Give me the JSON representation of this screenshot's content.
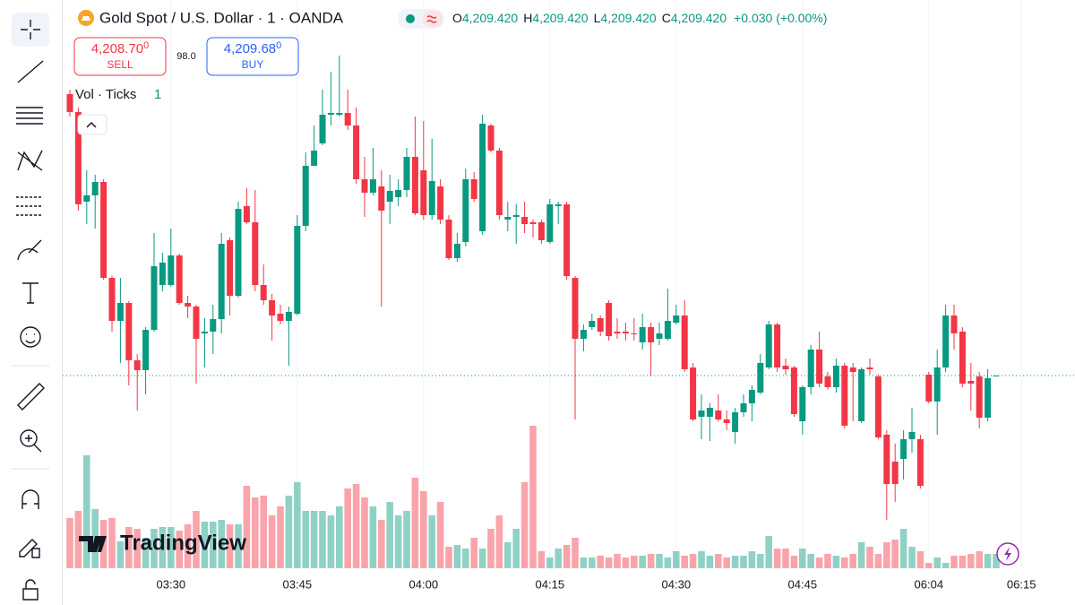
{
  "header": {
    "title": "Gold Spot / U.S. Dollar · 1 · OANDA",
    "ohlc": [
      {
        "key": "O",
        "value": "4,209.420"
      },
      {
        "key": "H",
        "value": "4,209.420"
      },
      {
        "key": "L",
        "value": "4,209.420"
      },
      {
        "key": "C",
        "value": "4,209.420"
      }
    ],
    "change": "+0.030 (+0.00%)"
  },
  "trade": {
    "sell": {
      "price": "4,208.70",
      "pip": "0",
      "label": "SELL"
    },
    "spread": "98.0",
    "buy": {
      "price": "4,209.68",
      "pip": "0",
      "label": "BUY"
    }
  },
  "indicator": {
    "label": "Vol · Ticks",
    "value": "1"
  },
  "watermark": "TradingView",
  "chart_data": {
    "type": "candlestick",
    "up_color": "#089981",
    "down_color": "#f23645",
    "ylim": [
      4206,
      4217
    ],
    "grid": true,
    "categories": [
      null,
      null,
      null,
      null,
      null,
      null,
      null,
      null,
      null,
      null,
      null,
      null,
      "03:30",
      null,
      null,
      null,
      null,
      null,
      null,
      null,
      null,
      null,
      null,
      null,
      null,
      null,
      null,
      "03:45",
      null,
      null,
      null,
      null,
      null,
      null,
      null,
      null,
      null,
      null,
      null,
      null,
      null,
      null,
      "04:00",
      null,
      null,
      null,
      null,
      null,
      null,
      null,
      null,
      null,
      null,
      null,
      null,
      null,
      null,
      "04:15",
      null,
      null,
      null,
      null,
      null,
      null,
      null,
      null,
      null,
      null,
      null,
      null,
      null,
      null,
      "04:30",
      null,
      null,
      null,
      null,
      null,
      null,
      null,
      null,
      null,
      null,
      null,
      null,
      null,
      null,
      "04:45",
      null,
      null,
      null,
      null,
      null,
      null,
      null,
      null,
      null,
      null,
      null,
      null,
      null,
      null,
      "06:04",
      null,
      null,
      null,
      null,
      null,
      null,
      null,
      null,
      null,
      null,
      "06:15"
    ],
    "open": [
      4215.7,
      4215.3,
      4213.3,
      4213.44,
      4213.74,
      4211.6,
      4210.64,
      4211.04,
      4209.76,
      4209.54,
      4210.44,
      4211.44,
      4211.44,
      4212.1,
      4211.04,
      4210.96,
      4210.36,
      4210.4,
      4210.68,
      4212.44,
      4211.2,
      4213.2,
      4212.84,
      4211.44,
      4211.1,
      4210.8,
      4210.64,
      4210.8,
      4212.76,
      4214.1,
      4214.6,
      4215.24,
      4215.24,
      4215.28,
      4215.0,
      4213.8,
      4213.5,
      4213.64,
      4213.3,
      4213.4,
      4213.56,
      4214.3,
      4214.0,
      4213.0,
      4213.64,
      4212.9,
      4212.04,
      4212.4,
      4213.8,
      4212.64,
      4215.0,
      4214.44,
      4212.9,
      4212.96,
      4212.96,
      4212.84,
      4212.84,
      4212.4,
      4213.2,
      4213.24,
      4211.6,
      4210.24,
      4210.5,
      4210.7,
      4211.04,
      4210.4,
      4210.4,
      4210.36,
      4210.16,
      4210.5,
      4210.24,
      4210.24,
      4210.6,
      4210.76,
      4209.6,
      4208.5,
      4208.5,
      4208.64,
      4208.44,
      4208.16,
      4208.6,
      4208.8,
      4209.04,
      4209.6,
      4210.56,
      4209.64,
      4209.6,
      4208.4,
      4209.16,
      4210.0,
      4209.4,
      4209.16,
      4209.64,
      4209.6,
      4208.4,
      4209.6,
      4209.4,
      4208.1,
      4207.5,
      4207.56,
      4208.0,
      4208.0,
      4209.44,
      4208.84,
      4209.6,
      4210.76,
      4210.4,
      4209.3,
      4209.4,
      4208.48,
      4209.42,
      null,
      null,
      null
    ],
    "high": [
      4215.8,
      4215.4,
      4214.0,
      4213.9,
      4213.8,
      4211.64,
      4211.6,
      4211.08,
      4209.9,
      4210.5,
      4212.6,
      4212.16,
      4212.7,
      4212.14,
      4211.2,
      4211.0,
      4210.7,
      4211.0,
      4212.6,
      4212.5,
      4213.3,
      4213.6,
      4213.56,
      4211.9,
      4211.24,
      4211.0,
      4210.96,
      4213.0,
      4214.4,
      4215.0,
      4215.8,
      4216.2,
      4216.56,
      4215.8,
      4215.4,
      4214.3,
      4214.5,
      4214.0,
      4213.9,
      4213.8,
      4214.5,
      4215.2,
      4215.1,
      4214.7,
      4213.8,
      4213.0,
      4212.6,
      4214.04,
      4213.96,
      4215.24,
      4215.04,
      4214.5,
      4213.3,
      4213.24,
      4213.3,
      4212.9,
      4212.9,
      4213.36,
      4213.3,
      4213.3,
      4211.64,
      4210.56,
      4210.8,
      4210.76,
      4211.1,
      4210.7,
      4210.6,
      4210.7,
      4210.8,
      4210.6,
      4210.6,
      4211.36,
      4211.0,
      4211.1,
      4209.7,
      4209.0,
      4208.8,
      4209.0,
      4208.64,
      4208.7,
      4209.0,
      4209.2,
      4209.9,
      4210.64,
      4210.6,
      4209.8,
      4209.64,
      4209.2,
      4210.1,
      4210.4,
      4209.5,
      4209.8,
      4209.7,
      4209.7,
      4209.6,
      4209.8,
      4209.44,
      4208.2,
      4207.9,
      4208.2,
      4208.7,
      4208.1,
      4209.5,
      4210.0,
      4211.0,
      4211.0,
      4210.5,
      4209.7,
      4209.5,
      4209.56,
      4209.42,
      null,
      null,
      null
    ],
    "low": [
      4215.2,
      4213.1,
      4212.8,
      4212.7,
      4211.56,
      4210.4,
      4209.7,
      4209.2,
      4208.64,
      4209.0,
      4210.4,
      4211.3,
      4211.4,
      4211.0,
      4210.7,
      4209.24,
      4209.6,
      4209.9,
      4210.36,
      4210.76,
      4211.16,
      4212.8,
      4211.3,
      4211.0,
      4210.2,
      4210.56,
      4209.64,
      4210.76,
      4212.64,
      4214.1,
      4214.56,
      4215.0,
      4215.2,
      4214.9,
      4213.7,
      4212.96,
      4213.44,
      4210.96,
      4212.8,
      4213.2,
      4213.4,
      4213.0,
      4212.9,
      4212.9,
      4212.8,
      4212.0,
      4211.96,
      4212.3,
      4213.3,
      4212.56,
      4214.4,
      4212.9,
      4212.64,
      4212.36,
      4212.6,
      4212.5,
      4212.36,
      4212.36,
      4212.8,
      4211.56,
      4208.44,
      4209.96,
      4210.44,
      4210.3,
      4210.2,
      4210.24,
      4210.2,
      4210.2,
      4210.0,
      4209.4,
      4210.1,
      4210.2,
      4210.56,
      4209.5,
      4208.4,
      4208.0,
      4207.96,
      4208.4,
      4208.2,
      4207.9,
      4208.5,
      4208.4,
      4209.0,
      4209.56,
      4209.5,
      4209.44,
      4208.5,
      4208.1,
      4209.0,
      4209.16,
      4209.1,
      4209.04,
      4208.24,
      4208.4,
      4208.36,
      4209.44,
      4208.0,
      4206.2,
      4206.6,
      4207.1,
      4207.7,
      4206.9,
      4208.8,
      4208.1,
      4209.5,
      4210.0,
      4209.16,
      4208.64,
      4208.24,
      4208.4,
      4209.42,
      null,
      null,
      null
    ],
    "close": [
      4215.3,
      4213.24,
      4213.44,
      4213.74,
      4211.6,
      4210.64,
      4211.04,
      4209.76,
      4209.54,
      4210.44,
      4211.86,
      4211.94,
      4212.1,
      4211.04,
      4210.96,
      4210.24,
      4210.4,
      4210.68,
      4212.36,
      4211.2,
      4213.14,
      4212.84,
      4211.44,
      4211.1,
      4210.76,
      4210.64,
      4210.84,
      4212.76,
      4214.1,
      4214.44,
      4215.24,
      4215.28,
      4215.28,
      4215.0,
      4213.8,
      4213.5,
      4213.8,
      4213.1,
      4213.54,
      4213.56,
      4214.3,
      4213.04,
      4213.0,
      4213.76,
      4212.9,
      4212.04,
      4212.36,
      4213.8,
      4213.36,
      4215.04,
      4214.44,
      4213.0,
      4212.96,
      4213.0,
      4212.8,
      4212.8,
      4212.44,
      4213.24,
      4213.24,
      4211.64,
      4210.24,
      4210.44,
      4210.64,
      4210.4,
      4210.3,
      4210.36,
      4210.36,
      4210.34,
      4210.5,
      4210.16,
      4210.36,
      4210.64,
      4210.76,
      4209.56,
      4208.44,
      4208.64,
      4208.7,
      4208.44,
      4208.36,
      4208.6,
      4208.8,
      4209.1,
      4209.7,
      4210.56,
      4209.6,
      4209.56,
      4208.56,
      4209.16,
      4210.0,
      4209.24,
      4209.16,
      4209.64,
      4208.3,
      4209.5,
      4209.56,
      4209.56,
      4208.04,
      4207.0,
      4207.0,
      4208.0,
      4208.16,
      4206.96,
      4208.84,
      4209.6,
      4210.76,
      4210.36,
      4209.24,
      4209.24,
      4208.48,
      4209.36,
      4209.42,
      null,
      null,
      null
    ],
    "volume": [
      56,
      64,
      126,
      66,
      54,
      56,
      30,
      46,
      44,
      34,
      44,
      46,
      46,
      42,
      49,
      64,
      52,
      52,
      54,
      49,
      49,
      92,
      79,
      81,
      59,
      69,
      81,
      96,
      64,
      64,
      64,
      59,
      69,
      89,
      94,
      79,
      69,
      54,
      74,
      59,
      64,
      101,
      86,
      59,
      74,
      24,
      26,
      22,
      34,
      22,
      44,
      59,
      29,
      44,
      96,
      159,
      19,
      12,
      22,
      26,
      34,
      12,
      12,
      14,
      12,
      16,
      12,
      14,
      14,
      16,
      16,
      12,
      19,
      14,
      16,
      19,
      14,
      16,
      12,
      14,
      14,
      19,
      16,
      36,
      22,
      22,
      14,
      22,
      16,
      12,
      16,
      14,
      12,
      16,
      29,
      24,
      16,
      29,
      32,
      44,
      24,
      19,
      6,
      12,
      6,
      14,
      14,
      16,
      19,
      16,
      16,
      null,
      null,
      null
    ]
  }
}
